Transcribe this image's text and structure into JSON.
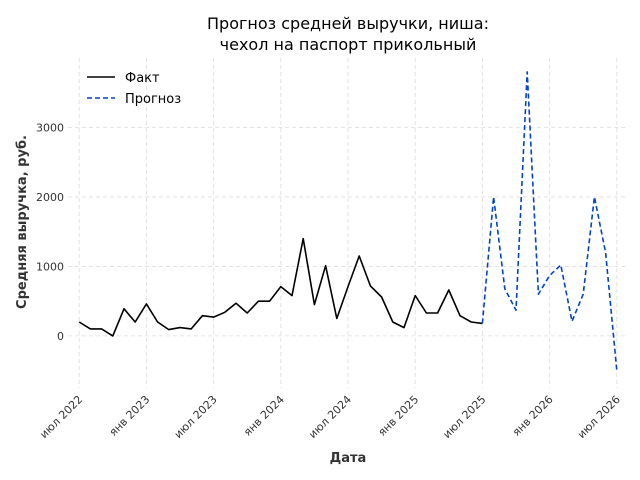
{
  "chart_data": {
    "type": "line",
    "title_line1": "Прогноз средней выручки, ниша:",
    "title_line2": "чехол на паспорт прикольный",
    "xlabel": "Дата",
    "ylabel": "Средняя выручка, руб.",
    "grid": true,
    "legend_position": "top-left",
    "x_ticks": [
      "июл 2022",
      "янв 2023",
      "июл 2023",
      "янв 2024",
      "июл 2024",
      "янв 2025",
      "июл 2025",
      "янв 2026",
      "июл 2026"
    ],
    "y_ticks": [
      0,
      1000,
      2000,
      3000
    ],
    "xlim": [
      "2022-06",
      "2026-08"
    ],
    "ylim": [
      -750,
      4000
    ],
    "series": [
      {
        "name": "Факт",
        "color": "#000000",
        "style": "solid",
        "points": [
          [
            "2022-07",
            200
          ],
          [
            "2022-08",
            100
          ],
          [
            "2022-09",
            100
          ],
          [
            "2022-10",
            0
          ],
          [
            "2022-11",
            390
          ],
          [
            "2022-12",
            200
          ],
          [
            "2023-01",
            460
          ],
          [
            "2023-02",
            200
          ],
          [
            "2023-03",
            90
          ],
          [
            "2023-04",
            120
          ],
          [
            "2023-05",
            100
          ],
          [
            "2023-06",
            290
          ],
          [
            "2023-07",
            270
          ],
          [
            "2023-08",
            340
          ],
          [
            "2023-09",
            470
          ],
          [
            "2023-10",
            330
          ],
          [
            "2023-11",
            500
          ],
          [
            "2023-12",
            500
          ],
          [
            "2024-01",
            710
          ],
          [
            "2024-02",
            580
          ],
          [
            "2024-03",
            1400
          ],
          [
            "2024-04",
            450
          ],
          [
            "2024-05",
            1010
          ],
          [
            "2024-06",
            250
          ],
          [
            "2024-07",
            710
          ],
          [
            "2024-08",
            1150
          ],
          [
            "2024-09",
            720
          ],
          [
            "2024-10",
            560
          ],
          [
            "2024-11",
            200
          ],
          [
            "2024-12",
            120
          ],
          [
            "2025-01",
            580
          ],
          [
            "2025-02",
            330
          ],
          [
            "2025-03",
            330
          ],
          [
            "2025-04",
            660
          ],
          [
            "2025-05",
            290
          ],
          [
            "2025-06",
            200
          ],
          [
            "2025-07",
            180
          ]
        ]
      },
      {
        "name": "Прогноз",
        "color": "#0044cc",
        "style": "dashed",
        "points": [
          [
            "2025-07",
            180
          ],
          [
            "2025-08",
            2000
          ],
          [
            "2025-09",
            680
          ],
          [
            "2025-10",
            370
          ],
          [
            "2025-11",
            3800
          ],
          [
            "2025-12",
            600
          ],
          [
            "2026-01",
            870
          ],
          [
            "2026-02",
            1020
          ],
          [
            "2026-03",
            210
          ],
          [
            "2026-04",
            600
          ],
          [
            "2026-05",
            2000
          ],
          [
            "2026-06",
            1200
          ],
          [
            "2026-07",
            -500
          ]
        ]
      }
    ]
  }
}
